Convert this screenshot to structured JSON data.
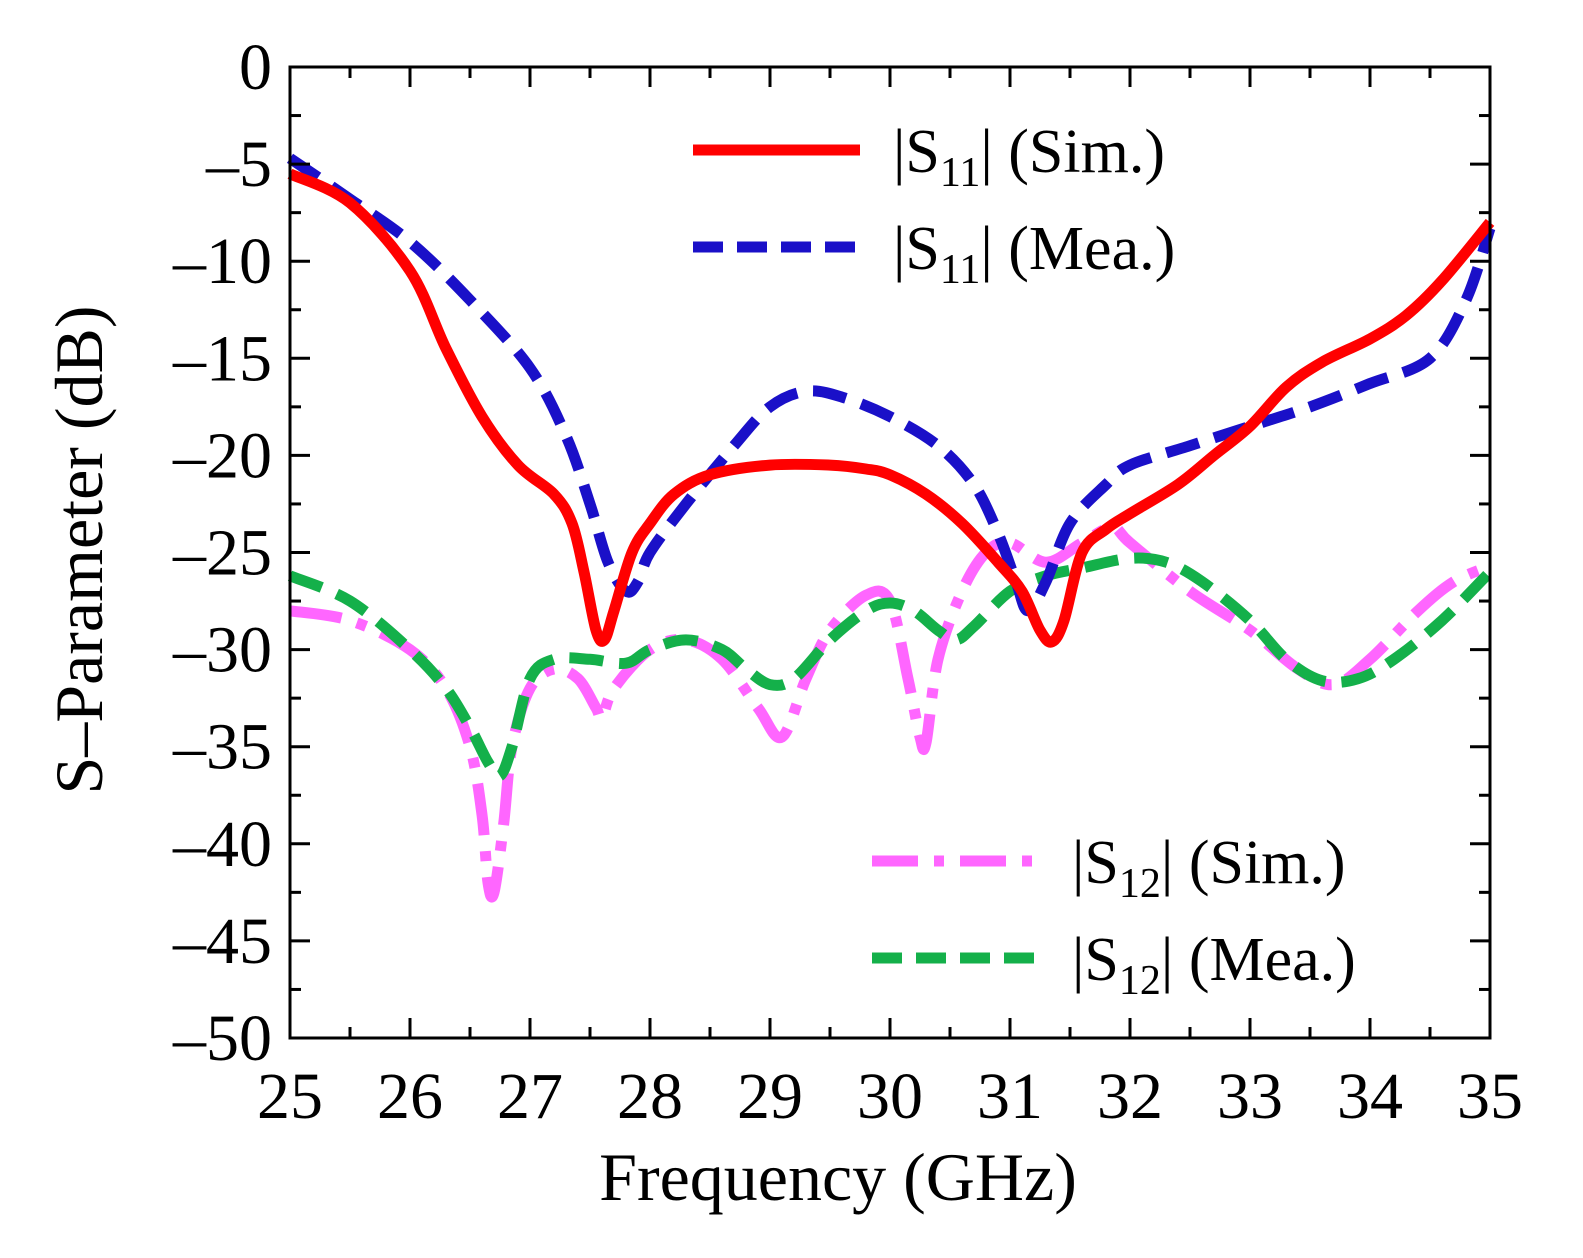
{
  "chart_data": {
    "type": "line",
    "title": "",
    "xlabel": "Frequency (GHz)",
    "ylabel": "S–Parameter (dB)",
    "xlim": [
      25,
      35
    ],
    "ylim": [
      -50,
      0
    ],
    "xticks": [
      25,
      26,
      27,
      28,
      29,
      30,
      31,
      32,
      33,
      34,
      35
    ],
    "yticks": [
      0,
      -5,
      -10,
      -15,
      -20,
      -25,
      -30,
      -35,
      -40,
      -45,
      -50
    ],
    "xtick_labels": [
      "25",
      "26",
      "27",
      "28",
      "29",
      "30",
      "31",
      "32",
      "33",
      "34",
      "35"
    ],
    "ytick_labels": [
      "0",
      "–5",
      "–10",
      "–15",
      "–20",
      "–25",
      "–30",
      "–35",
      "–40",
      "–45",
      "–50"
    ],
    "grid": false,
    "series": [
      {
        "name": "|S11| (Sim.)",
        "legend_main": "|S",
        "legend_sub": "11",
        "legend_tail": "| (Sim.)",
        "color": "#ff0000",
        "style": "solid",
        "x": [
          25,
          25.5,
          26,
          26.3,
          26.6,
          26.9,
          27.2,
          27.35,
          27.45,
          27.55,
          27.62,
          27.7,
          27.85,
          28,
          28.2,
          28.5,
          29,
          29.5,
          29.8,
          30,
          30.3,
          30.6,
          30.9,
          31.1,
          31.25,
          31.35,
          31.45,
          31.6,
          31.8,
          32,
          32.4,
          32.7,
          33,
          33.3,
          33.6,
          34,
          34.3,
          34.6,
          35
        ],
        "y": [
          -5.5,
          -7,
          -10.5,
          -14.5,
          -18,
          -20.5,
          -22,
          -23.5,
          -26,
          -29,
          -29.5,
          -28,
          -25,
          -23.5,
          -22,
          -21,
          -20.5,
          -20.5,
          -20.7,
          -21,
          -22,
          -23.5,
          -25.5,
          -27,
          -29,
          -29.6,
          -28.5,
          -25,
          -23.8,
          -23,
          -21.5,
          -20,
          -18.5,
          -16.5,
          -15.2,
          -14,
          -12.8,
          -11,
          -8
        ]
      },
      {
        "name": "|S11| (Mea.)",
        "legend_main": "|S",
        "legend_sub": "11",
        "legend_tail": "| (Mea.)",
        "color": "#1a10c8",
        "style": "dash",
        "x": [
          25,
          25.5,
          26,
          26.5,
          27,
          27.3,
          27.5,
          27.65,
          27.8,
          27.9,
          28,
          28.3,
          28.7,
          29,
          29.3,
          29.6,
          30,
          30.4,
          30.7,
          30.9,
          31.05,
          31.15,
          31.3,
          31.5,
          31.8,
          32,
          32.5,
          33,
          33.5,
          34,
          34.5,
          34.8,
          35
        ],
        "y": [
          -4.7,
          -6.8,
          -9,
          -12,
          -15.5,
          -19,
          -22.5,
          -25.5,
          -27,
          -26.5,
          -25,
          -22.5,
          -19.5,
          -17.5,
          -16.7,
          -17,
          -18,
          -19.5,
          -21.5,
          -24,
          -26.5,
          -28,
          -26.5,
          -23.5,
          -21.5,
          -20.5,
          -19.5,
          -18.5,
          -17.5,
          -16.3,
          -15,
          -12,
          -8.3
        ]
      },
      {
        "name": "|S12| (Sim.)",
        "legend_main": "|S",
        "legend_sub": "12",
        "legend_tail": "| (Sim.)",
        "color": "#ff66ff",
        "style": "dashdot",
        "x": [
          25,
          25.5,
          26,
          26.3,
          26.5,
          26.6,
          26.65,
          26.7,
          26.78,
          26.85,
          27,
          27.2,
          27.4,
          27.55,
          27.6,
          27.7,
          28,
          28.3,
          28.6,
          28.9,
          29.1,
          29.3,
          29.5,
          29.8,
          30,
          30.15,
          30.25,
          30.3,
          30.4,
          30.6,
          30.8,
          31,
          31.3,
          31.6,
          31.85,
          32,
          32.5,
          33,
          33.4,
          33.7,
          34,
          34.4,
          34.7,
          35
        ],
        "y": [
          -28,
          -28.5,
          -30,
          -32,
          -35,
          -38.5,
          -42,
          -42.5,
          -39,
          -35,
          -32,
          -31,
          -31.5,
          -33,
          -33.5,
          -32,
          -30,
          -29.5,
          -30.5,
          -33,
          -34.5,
          -31.5,
          -29,
          -27.2,
          -27.5,
          -31.5,
          -34.5,
          -34.8,
          -30.5,
          -27,
          -25,
          -24.5,
          -25.5,
          -24.5,
          -23.7,
          -24.5,
          -27,
          -29,
          -31,
          -31.8,
          -30.5,
          -28,
          -26.5,
          -25.7
        ]
      },
      {
        "name": "|S12| (Mea.)",
        "legend_main": "|S",
        "legend_sub": "12",
        "legend_tail": "| (Mea.)",
        "color": "#14b04a",
        "style": "dash",
        "x": [
          25,
          25.5,
          26,
          26.3,
          26.5,
          26.65,
          26.75,
          26.85,
          27,
          27.2,
          27.5,
          27.8,
          28,
          28.3,
          28.6,
          28.8,
          29,
          29.2,
          29.5,
          29.8,
          30,
          30.2,
          30.4,
          30.55,
          30.7,
          31,
          31.3,
          31.6,
          32,
          32.3,
          32.6,
          33,
          33.3,
          33.6,
          33.9,
          34.2,
          34.6,
          35
        ],
        "y": [
          -26.2,
          -27.5,
          -30,
          -32,
          -34,
          -35.8,
          -36.5,
          -35,
          -31.5,
          -30.5,
          -30.5,
          -30.7,
          -30,
          -29.5,
          -30,
          -31,
          -31.8,
          -31.5,
          -29.5,
          -28,
          -27.6,
          -28,
          -29,
          -29.5,
          -28.8,
          -27,
          -26.2,
          -25.8,
          -25.3,
          -25.5,
          -26.5,
          -28.5,
          -30.5,
          -31.6,
          -31.5,
          -30.5,
          -28.5,
          -26
        ]
      }
    ]
  }
}
